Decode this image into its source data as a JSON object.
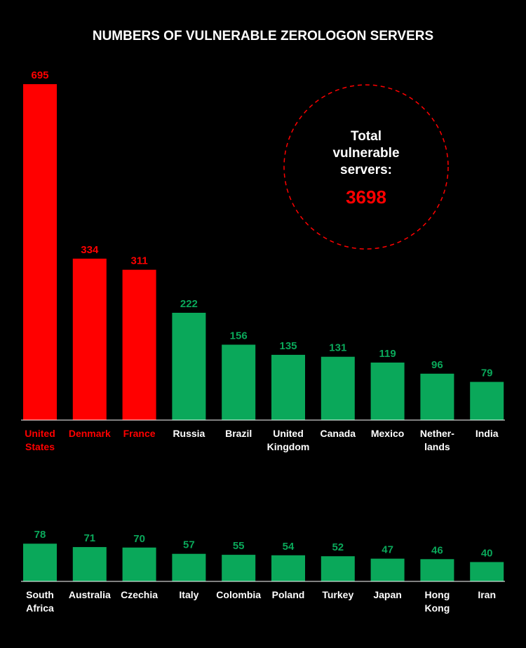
{
  "colors": {
    "highlight": "#ff0000",
    "normal": "#0aa85a",
    "background": "#000000",
    "text": "#ffffff",
    "axis": "#ffffff"
  },
  "title": "NUMBERS OF VULNERABLE ZEROLOGON SERVERS",
  "total": {
    "label_lines": [
      "Total",
      "vulnerable",
      "servers:"
    ],
    "value": "3698"
  },
  "chart_data": [
    {
      "type": "bar",
      "title": "NUMBERS OF VULNERABLE ZEROLOGON SERVERS",
      "categories": [
        [
          "United",
          "States"
        ],
        [
          "Denmark"
        ],
        [
          "France"
        ],
        [
          "Russia"
        ],
        [
          "Brazil"
        ],
        [
          "United",
          "Kingdom"
        ],
        [
          "Canada"
        ],
        [
          "Mexico"
        ],
        [
          "Nether-",
          "lands"
        ],
        [
          "India"
        ]
      ],
      "values": [
        695,
        334,
        311,
        222,
        156,
        135,
        131,
        119,
        96,
        79
      ],
      "highlighted": [
        true,
        true,
        true,
        false,
        false,
        false,
        false,
        false,
        false,
        false
      ],
      "ylim": [
        0,
        695
      ],
      "grid": false
    },
    {
      "type": "bar",
      "categories": [
        [
          "South",
          "Africa"
        ],
        [
          "Australia"
        ],
        [
          "Czechia"
        ],
        [
          "Italy"
        ],
        [
          "Colombia"
        ],
        [
          "Poland"
        ],
        [
          "Turkey"
        ],
        [
          "Japan"
        ],
        [
          "Hong",
          "Kong"
        ],
        [
          "Iran"
        ]
      ],
      "values": [
        78,
        71,
        70,
        57,
        55,
        54,
        52,
        47,
        46,
        40
      ],
      "highlighted": [
        false,
        false,
        false,
        false,
        false,
        false,
        false,
        false,
        false,
        false
      ],
      "ylim": [
        0,
        695
      ],
      "grid": false
    }
  ]
}
